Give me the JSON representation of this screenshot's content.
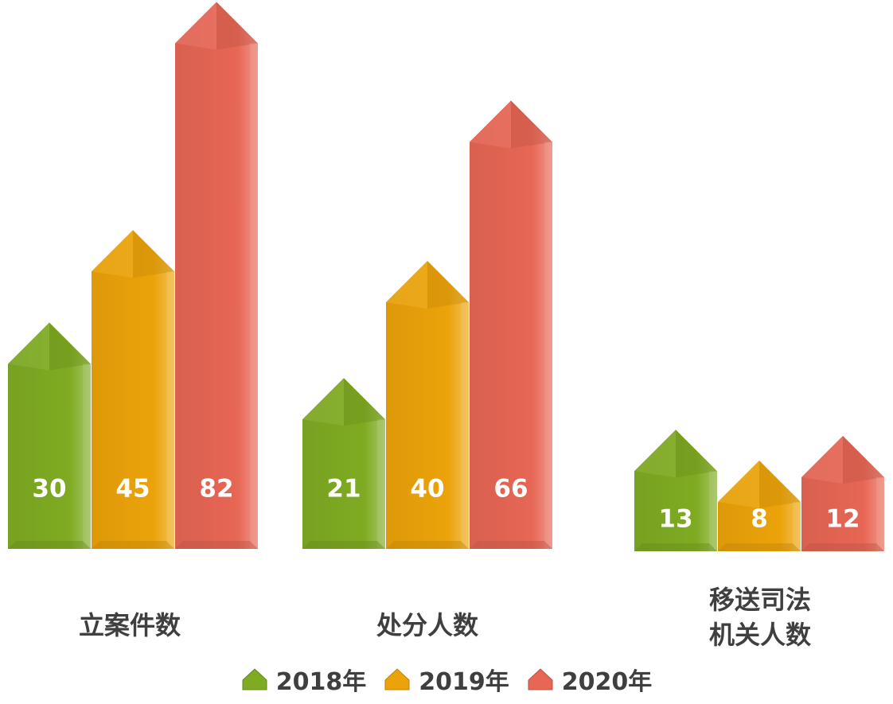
{
  "chart_data": {
    "type": "bar",
    "categories": [
      "立案件数",
      "处分人数",
      "移送司法机关人数"
    ],
    "category_lines": [
      [
        "立案件数"
      ],
      [
        "处分人数"
      ],
      [
        "移送司法",
        "机关人数"
      ]
    ],
    "series": [
      {
        "name": "2018年",
        "values": [
          30,
          21,
          13
        ],
        "color": "#7fab22"
      },
      {
        "name": "2019年",
        "values": [
          45,
          40,
          8
        ],
        "color": "#eca30a"
      },
      {
        "name": "2020年",
        "values": [
          82,
          66,
          12
        ],
        "color": "#e76654"
      }
    ],
    "legend_placement": "bottom",
    "grid": false,
    "xlabel": "",
    "ylabel": ""
  }
}
